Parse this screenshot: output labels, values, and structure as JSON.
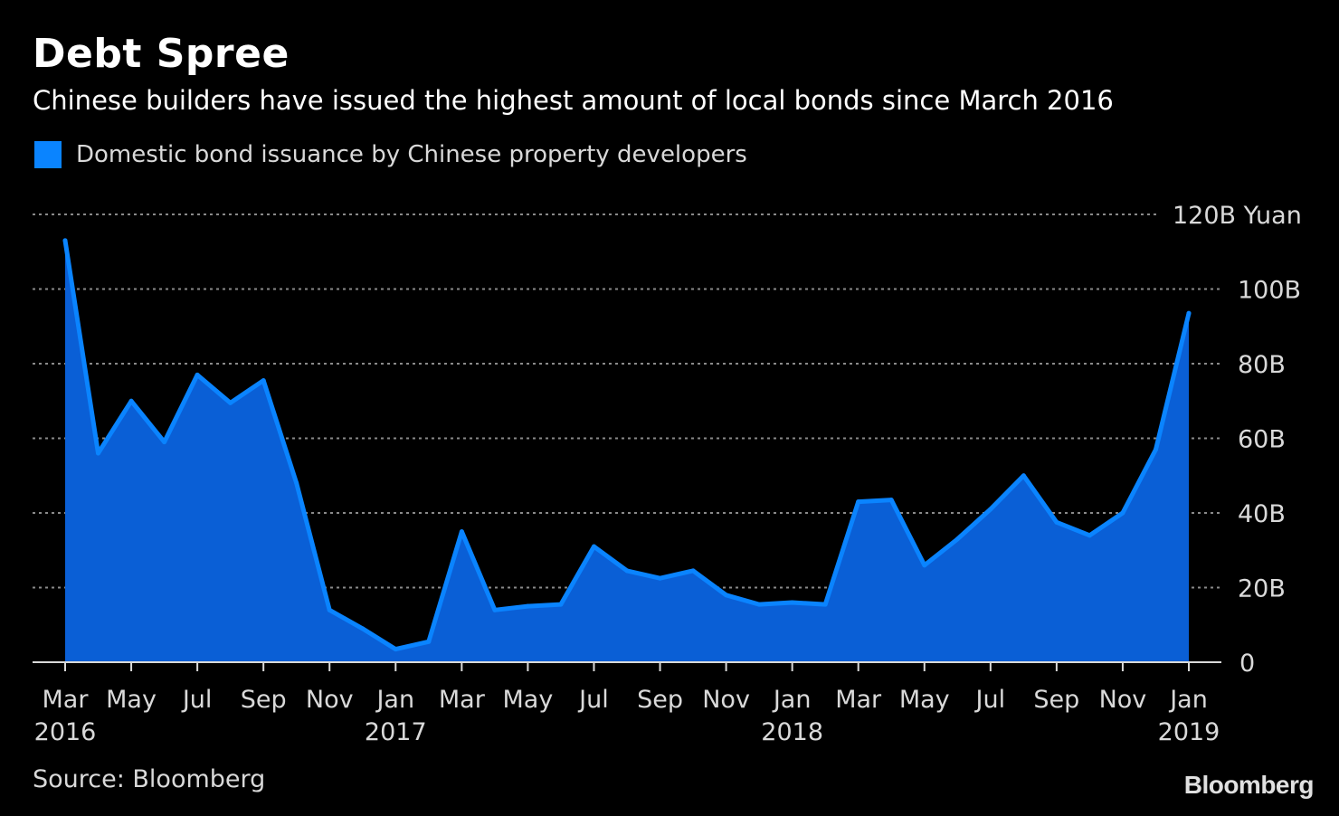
{
  "title": "Debt Spree",
  "subtitle": "Chinese builders have issued the highest amount of local bonds since March 2016",
  "legend": {
    "label": "Domestic bond issuance by Chinese property developers"
  },
  "source": "Source: Bloomberg",
  "logo": "Bloomberg",
  "colors": {
    "background": "#000000",
    "series": "#0a84ff",
    "area_fill": "#0a5fd6",
    "grid": "#8a8a8a",
    "text": "#d9d9d9"
  },
  "chart_data": {
    "type": "area",
    "title": "Debt Spree",
    "subtitle": "Chinese builders have issued the highest amount of local bonds since March 2016",
    "x": [
      "2016-03",
      "2016-04",
      "2016-05",
      "2016-06",
      "2016-07",
      "2016-08",
      "2016-09",
      "2016-10",
      "2016-11",
      "2016-12",
      "2017-01",
      "2017-02",
      "2017-03",
      "2017-04",
      "2017-05",
      "2017-06",
      "2017-07",
      "2017-08",
      "2017-09",
      "2017-10",
      "2017-11",
      "2017-12",
      "2018-01",
      "2018-02",
      "2018-03",
      "2018-04",
      "2018-05",
      "2018-06",
      "2018-07",
      "2018-08",
      "2018-09",
      "2018-10",
      "2018-11",
      "2018-12",
      "2019-01"
    ],
    "series": [
      {
        "name": "Domestic bond issuance by Chinese property developers",
        "values": [
          113,
          56,
          70,
          59,
          77,
          69.5,
          75.5,
          48,
          14,
          9,
          3.5,
          5.5,
          35,
          14,
          15,
          15.5,
          31,
          24.5,
          22.5,
          24.5,
          18,
          15.5,
          16,
          15.5,
          43,
          43.5,
          26,
          33,
          41,
          50,
          37.5,
          34,
          40,
          57,
          93.5
        ]
      }
    ],
    "x_tick_labels": [
      {
        "month": "Mar",
        "year": "2016",
        "x": "2016-03"
      },
      {
        "month": "May",
        "year": "",
        "x": "2016-05"
      },
      {
        "month": "Jul",
        "year": "",
        "x": "2016-07"
      },
      {
        "month": "Sep",
        "year": "",
        "x": "2016-09"
      },
      {
        "month": "Nov",
        "year": "",
        "x": "2016-11"
      },
      {
        "month": "Jan",
        "year": "2017",
        "x": "2017-01"
      },
      {
        "month": "Mar",
        "year": "",
        "x": "2017-03"
      },
      {
        "month": "May",
        "year": "",
        "x": "2017-05"
      },
      {
        "month": "Jul",
        "year": "",
        "x": "2017-07"
      },
      {
        "month": "Sep",
        "year": "",
        "x": "2017-09"
      },
      {
        "month": "Nov",
        "year": "",
        "x": "2017-11"
      },
      {
        "month": "Jan",
        "year": "2018",
        "x": "2018-01"
      },
      {
        "month": "Mar",
        "year": "",
        "x": "2018-03"
      },
      {
        "month": "May",
        "year": "",
        "x": "2018-05"
      },
      {
        "month": "Jul",
        "year": "",
        "x": "2018-07"
      },
      {
        "month": "Sep",
        "year": "",
        "x": "2018-09"
      },
      {
        "month": "Nov",
        "year": "",
        "x": "2018-11"
      },
      {
        "month": "Jan",
        "year": "2019",
        "x": "2019-01"
      }
    ],
    "y_ticks": [
      {
        "value": 0,
        "label": "0"
      },
      {
        "value": 20,
        "label": "20B"
      },
      {
        "value": 40,
        "label": "40B"
      },
      {
        "value": 60,
        "label": "60B"
      },
      {
        "value": 80,
        "label": "80B"
      },
      {
        "value": 100,
        "label": "100B"
      },
      {
        "value": 120,
        "label": "120B Yuan"
      }
    ],
    "ylim": [
      0,
      120
    ],
    "xlabel": "",
    "ylabel": "",
    "grid": true,
    "legend_position": "top-left"
  }
}
